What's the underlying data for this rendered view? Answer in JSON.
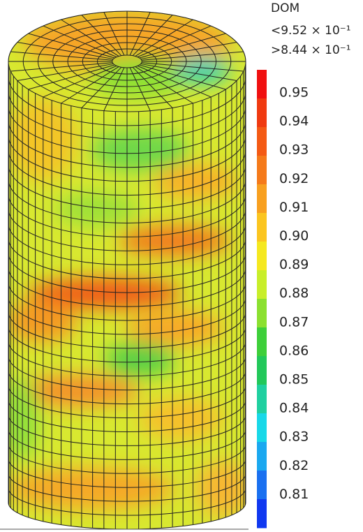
{
  "legend": {
    "title": "DOM",
    "max_label": "<9.52 × 10⁻¹",
    "min_label": ">8.44 × 10⁻¹",
    "ticks": [
      "0.95",
      "0.94",
      "0.93",
      "0.92",
      "0.91",
      "0.90",
      "0.89",
      "0.88",
      "0.87",
      "0.86",
      "0.85",
      "0.84",
      "0.83",
      "0.82",
      "0.81"
    ]
  }
}
